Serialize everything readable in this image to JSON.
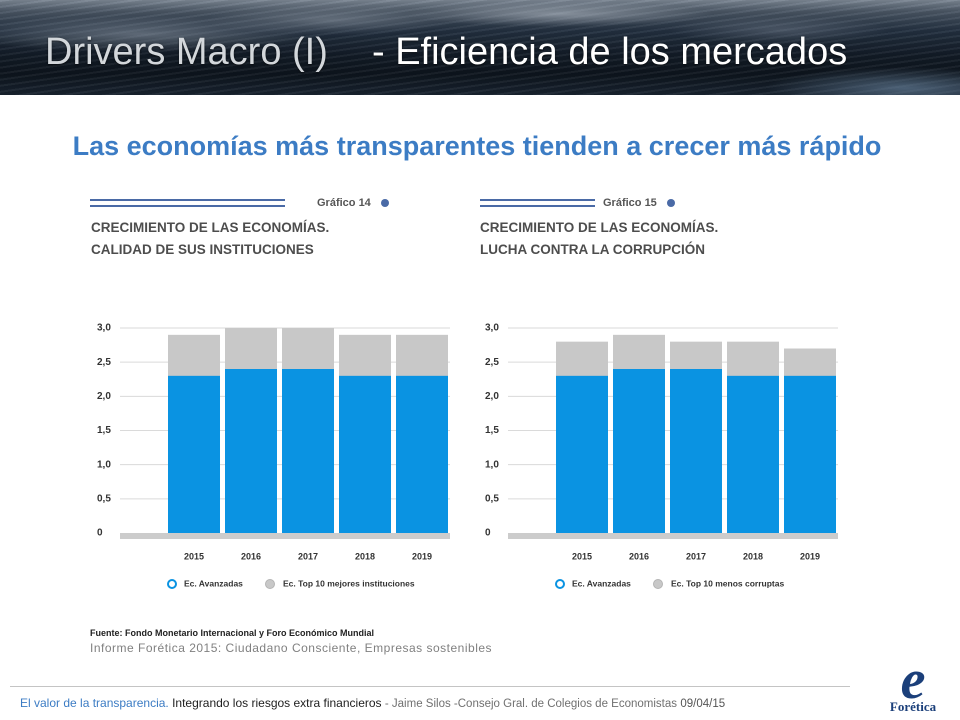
{
  "slide": {
    "title_part1": "Drivers Macro (I)",
    "title_part2": "- Eficiencia de los mercados",
    "subtitle": "Las economías más transparentes tienden a crecer más rápido",
    "source_label": "Fuente:",
    "source_text": "Fondo Monetario Internacional y Foro Económico Mundial",
    "report_note": "Informe Forética 2015: Ciudadano Consciente, Empresas sostenibles"
  },
  "footer": {
    "topic": "El valor de la transparencia.",
    "subtopic": "Integrando los riesgos extra financieros",
    "speaker": "- Jaime Silos -Consejo Gral. de Colegios de Economistas",
    "date": "09/04/15"
  },
  "logo": {
    "mark": "e",
    "name": "Forética"
  },
  "colors": {
    "subtitle": "#3c7cc4",
    "footer_accent": "#3c7cc4",
    "chart_rule": "#4a6aa6",
    "logo": "#1b3f7a"
  },
  "chart_data": [
    {
      "type": "bar",
      "label": "Gráfico 14",
      "title": [
        "CRECIMIENTO DE LAS ECONOMÍAS.",
        "CALIDAD DE SUS INSTITUCIONES"
      ],
      "categories": [
        "2015",
        "2016",
        "2017",
        "2018",
        "2019"
      ],
      "series": [
        {
          "name": "Ec. Avanzadas",
          "values": [
            2.3,
            2.4,
            2.4,
            2.3,
            2.3
          ],
          "color": "#0a93e2"
        },
        {
          "name": "Ec. Top 10 mejores instituciones",
          "values": [
            2.9,
            3.0,
            3.0,
            2.9,
            2.9
          ],
          "color": "#c8c8c8"
        }
      ],
      "ylim": [
        0,
        3
      ],
      "yticks": [
        {
          "value": 0,
          "label": "0"
        },
        {
          "value": 0.5,
          "label": "0,5"
        },
        {
          "value": 1,
          "label": "1,0"
        },
        {
          "value": 1.5,
          "label": "1,5"
        },
        {
          "value": 2,
          "label": "2,0"
        },
        {
          "value": 2.5,
          "label": "2,5"
        },
        {
          "value": 3,
          "label": "3,0"
        }
      ],
      "grid": true,
      "legend": "bottom"
    },
    {
      "type": "bar",
      "label": "Gráfico 15",
      "title": [
        "CRECIMIENTO DE LAS ECONOMÍAS.",
        "LUCHA CONTRA LA CORRUPCIÓN"
      ],
      "categories": [
        "2015",
        "2016",
        "2017",
        "2018",
        "2019"
      ],
      "series": [
        {
          "name": "Ec. Avanzadas",
          "values": [
            2.3,
            2.4,
            2.4,
            2.3,
            2.3
          ],
          "color": "#0a93e2"
        },
        {
          "name": "Ec. Top 10 menos corruptas",
          "values": [
            2.8,
            2.9,
            2.8,
            2.8,
            2.7
          ],
          "color": "#c8c8c8"
        }
      ],
      "ylim": [
        0,
        3
      ],
      "yticks": [
        {
          "value": 0,
          "label": "0"
        },
        {
          "value": 0.5,
          "label": "0,5"
        },
        {
          "value": 1,
          "label": "1,0"
        },
        {
          "value": 1.5,
          "label": "1,5"
        },
        {
          "value": 2,
          "label": "2,0"
        },
        {
          "value": 2.5,
          "label": "2,5"
        },
        {
          "value": 3,
          "label": "3,0"
        }
      ],
      "grid": true,
      "legend": "bottom"
    }
  ]
}
